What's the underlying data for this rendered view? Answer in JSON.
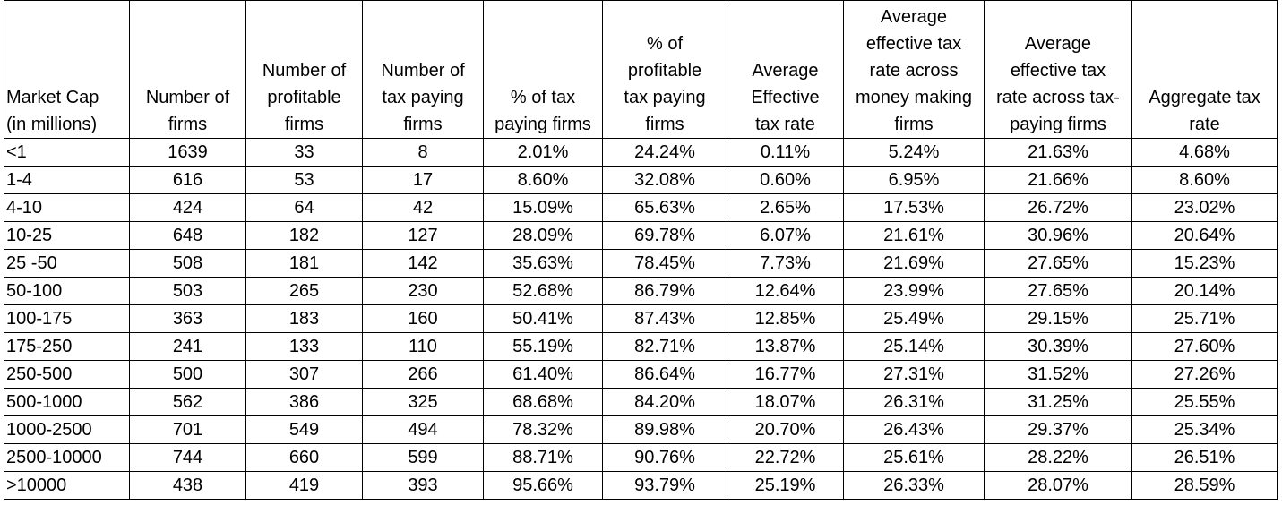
{
  "headers": [
    [
      "Market Cap",
      "(in millions)"
    ],
    [
      "Number of",
      "firms"
    ],
    [
      "Number of",
      "profitable",
      "firms"
    ],
    [
      "Number of",
      "tax paying",
      "firms"
    ],
    [
      "% of tax",
      "paying firms"
    ],
    [
      "% of",
      "profitable",
      "tax paying",
      "firms"
    ],
    [
      "Average",
      "Effective",
      "tax rate"
    ],
    [
      "Average",
      "effective tax",
      "rate across",
      "money making",
      "firms"
    ],
    [
      "Average",
      "effective tax",
      "rate across tax-",
      "paying firms"
    ],
    [
      "Aggregate tax",
      "rate"
    ]
  ],
  "rows": [
    [
      "<1",
      "1639",
      "33",
      "8",
      "2.01%",
      "24.24%",
      "0.11%",
      "5.24%",
      "21.63%",
      "4.68%"
    ],
    [
      " 1-4",
      "616",
      "53",
      "17",
      "8.60%",
      "32.08%",
      "0.60%",
      "6.95%",
      "21.66%",
      "8.60%"
    ],
    [
      " 4-10",
      "424",
      "64",
      "42",
      "15.09%",
      "65.63%",
      "2.65%",
      "17.53%",
      "26.72%",
      "23.02%"
    ],
    [
      " 10-25",
      "648",
      "182",
      "127",
      "28.09%",
      "69.78%",
      "6.07%",
      "21.61%",
      "30.96%",
      "20.64%"
    ],
    [
      "25 -50",
      "508",
      "181",
      "142",
      "35.63%",
      "78.45%",
      "7.73%",
      "21.69%",
      "27.65%",
      "15.23%"
    ],
    [
      "50-100",
      "503",
      "265",
      "230",
      "52.68%",
      "86.79%",
      "12.64%",
      "23.99%",
      "27.65%",
      "20.14%"
    ],
    [
      "100-175",
      "363",
      "183",
      "160",
      "50.41%",
      "87.43%",
      "12.85%",
      "25.49%",
      "29.15%",
      "25.71%"
    ],
    [
      "175-250",
      "241",
      "133",
      "110",
      "55.19%",
      "82.71%",
      "13.87%",
      "25.14%",
      "30.39%",
      "27.60%"
    ],
    [
      "250-500",
      "500",
      "307",
      "266",
      "61.40%",
      "86.64%",
      "16.77%",
      "27.31%",
      "31.52%",
      "27.26%"
    ],
    [
      "500-1000",
      "562",
      "386",
      "325",
      "68.68%",
      "84.20%",
      "18.07%",
      "26.31%",
      "31.25%",
      "25.55%"
    ],
    [
      "1000-2500",
      "701",
      "549",
      "494",
      "78.32%",
      "89.98%",
      "20.70%",
      "26.43%",
      "29.37%",
      "25.34%"
    ],
    [
      "2500-10000",
      "744",
      "660",
      "599",
      "88.71%",
      "90.76%",
      "22.72%",
      "25.61%",
      "28.22%",
      "26.51%"
    ],
    [
      ">10000",
      "438",
      "419",
      "393",
      "95.66%",
      "93.79%",
      "25.19%",
      "26.33%",
      "28.07%",
      "28.59%"
    ]
  ]
}
